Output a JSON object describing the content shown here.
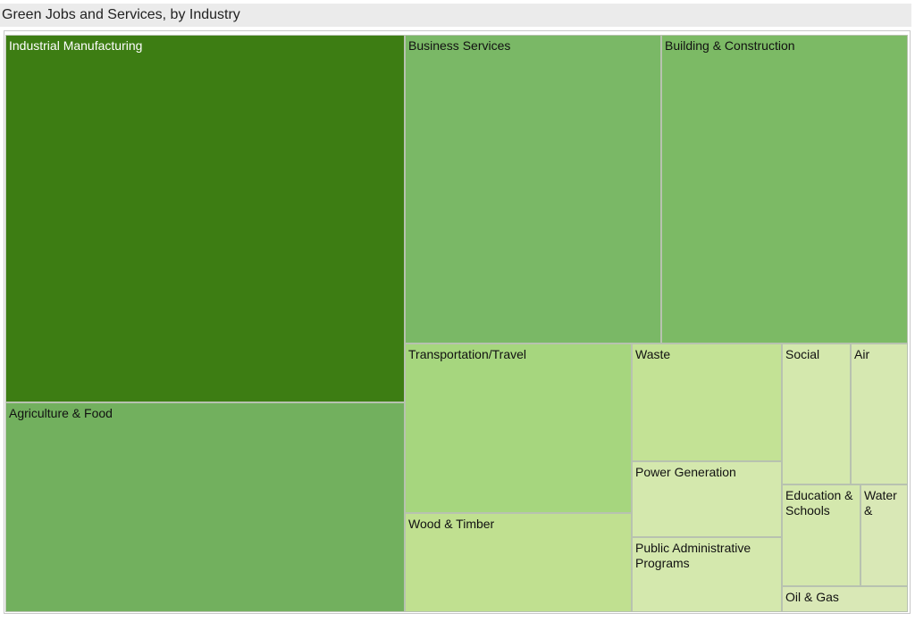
{
  "chart_data": {
    "type": "treemap",
    "title": "Green Jobs and Services, by Industry",
    "items": [
      {
        "name": "Industrial Manufacturing",
        "value": 27.6,
        "color": "#3d7d13",
        "text": "light"
      },
      {
        "name": "Agriculture & Food",
        "value": 15.2,
        "color": "#72b05e",
        "text": "dark"
      },
      {
        "name": "Business Services",
        "value": 13.2,
        "color": "#7ab866",
        "text": "dark"
      },
      {
        "name": "Building & Construction",
        "value": 12.8,
        "color": "#7cba65",
        "text": "dark"
      },
      {
        "name": "Transportation/Travel",
        "value": 6.6,
        "color": "#a6d67e",
        "text": "dark"
      },
      {
        "name": "Wood & Timber",
        "value": 4.0,
        "color": "#c0e090",
        "text": "dark"
      },
      {
        "name": "Waste",
        "value": 3.0,
        "color": "#c3e295",
        "text": "dark"
      },
      {
        "name": "Power Generation",
        "value": 1.9,
        "color": "#d4e8ad",
        "text": "dark"
      },
      {
        "name": "Public Administrative Programs",
        "value": 1.9,
        "color": "#d4e8ad",
        "text": "dark"
      },
      {
        "name": "Social",
        "value": 1.4,
        "color": "#d4e8ad",
        "text": "dark"
      },
      {
        "name": "Air",
        "value": 0.9,
        "color": "#d6e8b1",
        "text": "dark"
      },
      {
        "name": "Education & Schools",
        "value": 1.0,
        "color": "#d4e8ad",
        "text": "dark"
      },
      {
        "name": "Water &",
        "value": 0.7,
        "color": "#d9e8b6",
        "text": "dark"
      },
      {
        "name": "Oil & Gas",
        "value": 0.6,
        "color": "#d9e8b6",
        "text": "dark"
      }
    ]
  }
}
